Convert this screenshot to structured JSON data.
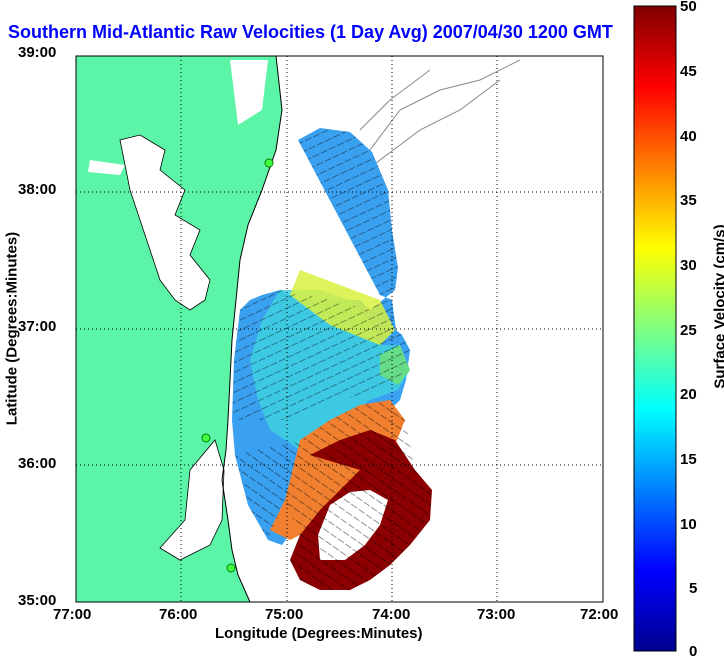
{
  "chart_data": {
    "type": "map",
    "title": "Southern Mid-Atlantic Raw Velocities (1 Day Avg) 2007/04/30 1200 GMT",
    "xlabel": "Longitude (Degrees:Minutes)",
    "ylabel": "Latitude (Degrees:Minutes)",
    "x_ticks": [
      "77:00",
      "76:00",
      "75:00",
      "74:00",
      "73:00",
      "72:00"
    ],
    "y_ticks": [
      "39:00",
      "38:00",
      "37:00",
      "36:00",
      "35:00"
    ],
    "xlim": [
      -77,
      -72
    ],
    "ylim": [
      35,
      39
    ],
    "grid": true,
    "colorbar": {
      "label": "Surface Velocity (cm/s)",
      "range": [
        0,
        50
      ],
      "ticks": [
        "50",
        "45",
        "40",
        "35",
        "30",
        "25",
        "20",
        "15",
        "10",
        "5",
        "0"
      ],
      "colormap": "jet"
    },
    "colors": {
      "land": "#5cf5a8",
      "title": "#0000ff",
      "coast": "#000000"
    }
  }
}
